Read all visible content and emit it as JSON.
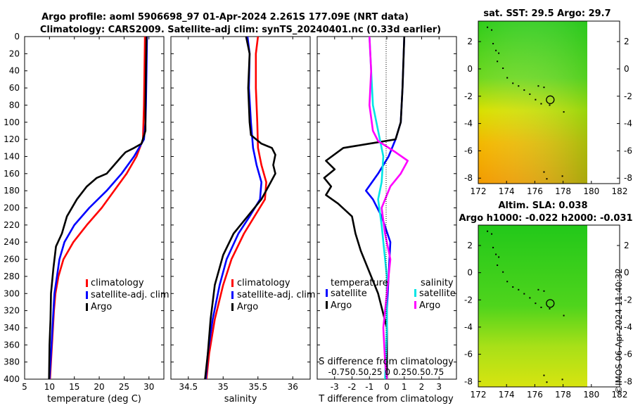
{
  "titles": {
    "line1": "Argo profile: aoml 5906698_97 01-Apr-2024 2.261S 177.09E (NRT data)",
    "line2": "Climatology: CARS2009. Satellite-adj clim: synTS_20240401.nc (0.33d earlier)"
  },
  "colors": {
    "climatology": "#ff0000",
    "satellite": "#0000ff",
    "argo": "#000000",
    "sat_salinity": "#00e5e5",
    "argo_salinity": "#ff00ff"
  },
  "depth_axis": {
    "ticks": [
      0,
      20,
      40,
      60,
      80,
      100,
      120,
      140,
      160,
      180,
      200,
      220,
      240,
      260,
      280,
      300,
      320,
      340,
      360,
      380,
      400
    ],
    "lim": [
      0,
      400
    ]
  },
  "legend": {
    "climatology": "climatology",
    "satellite_adj": "satellite-adj. clim",
    "argo": "Argo",
    "temperature": "temperature",
    "salinity": "salinity",
    "satellite": "satellite"
  },
  "chart_data": [
    {
      "type": "line",
      "name": "temperature-profile",
      "xlabel": "temperature (deg C)",
      "xlim": [
        5,
        33
      ],
      "xticks": [
        5,
        10,
        15,
        20,
        25,
        30
      ],
      "ylim": [
        400,
        0
      ],
      "series": [
        {
          "name": "climatology",
          "color": "red",
          "points": [
            [
              29.2,
              0
            ],
            [
              29.1,
              40
            ],
            [
              29.0,
              80
            ],
            [
              28.9,
              100
            ],
            [
              28.8,
              120
            ],
            [
              27.5,
              140
            ],
            [
              25.5,
              160
            ],
            [
              23.0,
              180
            ],
            [
              20.5,
              200
            ],
            [
              17.5,
              220
            ],
            [
              14.8,
              240
            ],
            [
              12.8,
              260
            ],
            [
              11.8,
              280
            ],
            [
              11.2,
              300
            ],
            [
              10.9,
              320
            ],
            [
              10.7,
              340
            ],
            [
              10.5,
              360
            ],
            [
              10.3,
              380
            ],
            [
              10.1,
              400
            ]
          ]
        },
        {
          "name": "satellite-adj. clim",
          "color": "blue",
          "points": [
            [
              29.6,
              0
            ],
            [
              29.5,
              40
            ],
            [
              29.4,
              80
            ],
            [
              29.3,
              100
            ],
            [
              29.0,
              120
            ],
            [
              27.0,
              140
            ],
            [
              24.5,
              160
            ],
            [
              21.5,
              180
            ],
            [
              18.0,
              200
            ],
            [
              15.0,
              220
            ],
            [
              13.0,
              240
            ],
            [
              12.0,
              260
            ],
            [
              11.5,
              280
            ],
            [
              11.0,
              300
            ],
            [
              10.8,
              320
            ],
            [
              10.6,
              340
            ],
            [
              10.4,
              360
            ],
            [
              10.2,
              380
            ],
            [
              10.0,
              400
            ]
          ]
        },
        {
          "name": "Argo",
          "color": "black",
          "points": [
            [
              29.5,
              0
            ],
            [
              29.4,
              40
            ],
            [
              29.3,
              80
            ],
            [
              29.3,
              110
            ],
            [
              28.5,
              125
            ],
            [
              27.0,
              130
            ],
            [
              25.3,
              135
            ],
            [
              24.5,
              140
            ],
            [
              23.0,
              150
            ],
            [
              21.5,
              160
            ],
            [
              19.5,
              165
            ],
            [
              17.5,
              175
            ],
            [
              15.5,
              190
            ],
            [
              13.5,
              210
            ],
            [
              12.5,
              230
            ],
            [
              11.3,
              245
            ],
            [
              10.8,
              270
            ],
            [
              10.3,
              300
            ],
            [
              10.2,
              330
            ],
            [
              10.0,
              360
            ],
            [
              9.9,
              400
            ]
          ]
        }
      ]
    },
    {
      "type": "line",
      "name": "salinity-profile",
      "xlabel": "salinity",
      "xlim": [
        34.25,
        36.25
      ],
      "xticks": [
        34.5,
        35,
        35.5,
        36
      ],
      "ylim": [
        400,
        0
      ],
      "series": [
        {
          "name": "climatology",
          "color": "red",
          "points": [
            [
              35.5,
              0
            ],
            [
              35.47,
              20
            ],
            [
              35.47,
              60
            ],
            [
              35.49,
              100
            ],
            [
              35.5,
              130
            ],
            [
              35.55,
              150
            ],
            [
              35.62,
              170
            ],
            [
              35.6,
              190
            ],
            [
              35.45,
              210
            ],
            [
              35.3,
              230
            ],
            [
              35.12,
              260
            ],
            [
              35.0,
              290
            ],
            [
              34.88,
              330
            ],
            [
              34.8,
              370
            ],
            [
              34.76,
              400
            ]
          ]
        },
        {
          "name": "satellite-adj. clim",
          "color": "blue",
          "points": [
            [
              35.35,
              0
            ],
            [
              35.38,
              20
            ],
            [
              35.37,
              60
            ],
            [
              35.4,
              100
            ],
            [
              35.43,
              130
            ],
            [
              35.48,
              150
            ],
            [
              35.55,
              170
            ],
            [
              35.53,
              190
            ],
            [
              35.38,
              210
            ],
            [
              35.22,
              230
            ],
            [
              35.05,
              260
            ],
            [
              34.95,
              290
            ],
            [
              34.85,
              330
            ],
            [
              34.78,
              370
            ],
            [
              34.75,
              400
            ]
          ]
        },
        {
          "name": "Argo",
          "color": "black",
          "points": [
            [
              35.33,
              0
            ],
            [
              35.38,
              20
            ],
            [
              35.36,
              60
            ],
            [
              35.38,
              100
            ],
            [
              35.4,
              115
            ],
            [
              35.55,
              125
            ],
            [
              35.7,
              130
            ],
            [
              35.75,
              138
            ],
            [
              35.72,
              150
            ],
            [
              35.75,
              160
            ],
            [
              35.65,
              175
            ],
            [
              35.55,
              190
            ],
            [
              35.35,
              210
            ],
            [
              35.15,
              230
            ],
            [
              35.0,
              255
            ],
            [
              34.88,
              290
            ],
            [
              34.82,
              330
            ],
            [
              34.78,
              370
            ],
            [
              34.74,
              400
            ]
          ]
        }
      ]
    },
    {
      "type": "line",
      "name": "difference-from-climatology",
      "xlabel": "T difference from climatology",
      "xlabel_top": "S difference from climatology",
      "xlim": [
        -4,
        4
      ],
      "xticks": [
        -3,
        -2,
        -1,
        0,
        1,
        2,
        3
      ],
      "top_ticks_text": "-0.750.50.25  0  0.250.50.75",
      "ylim": [
        400,
        0
      ],
      "series": [
        {
          "name": "satellite temperature",
          "color": "blue",
          "points": [
            [
              1.0,
              0
            ],
            [
              0.9,
              60
            ],
            [
              0.8,
              100
            ],
            [
              0.5,
              120
            ],
            [
              0.1,
              140
            ],
            [
              -0.5,
              160
            ],
            [
              -1.2,
              180
            ],
            [
              -0.8,
              190
            ],
            [
              -0.3,
              210
            ],
            [
              0.2,
              240
            ],
            [
              0.1,
              280
            ],
            [
              0.0,
              320
            ],
            [
              0.0,
              360
            ],
            [
              0.0,
              400
            ]
          ]
        },
        {
          "name": "Argo temperature",
          "color": "black",
          "points": [
            [
              1.0,
              0
            ],
            [
              0.9,
              60
            ],
            [
              0.8,
              100
            ],
            [
              0.5,
              120
            ],
            [
              -1.0,
              125
            ],
            [
              -2.5,
              130
            ],
            [
              -3.5,
              145
            ],
            [
              -3.0,
              155
            ],
            [
              -3.6,
              165
            ],
            [
              -3.2,
              175
            ],
            [
              -3.5,
              185
            ],
            [
              -2.8,
              195
            ],
            [
              -2.0,
              210
            ],
            [
              -1.8,
              230
            ],
            [
              -1.5,
              250
            ],
            [
              -0.5,
              300
            ],
            [
              0.0,
              340
            ],
            [
              0.0,
              380
            ],
            [
              0.0,
              400
            ]
          ]
        },
        {
          "name": "satellite salinity",
          "color": "cyan",
          "points": [
            [
              -1.0,
              0
            ],
            [
              -0.9,
              40
            ],
            [
              -0.8,
              80
            ],
            [
              -0.5,
              110
            ],
            [
              -0.2,
              140
            ],
            [
              -0.3,
              170
            ],
            [
              -0.5,
              190
            ],
            [
              -0.3,
              220
            ],
            [
              0.0,
              280
            ],
            [
              0.0,
              340
            ],
            [
              -0.1,
              400
            ]
          ]
        },
        {
          "name": "Argo salinity",
          "color": "magenta",
          "points": [
            [
              -1.0,
              0
            ],
            [
              -0.9,
              40
            ],
            [
              -1.0,
              80
            ],
            [
              -0.8,
              110
            ],
            [
              -0.5,
              122
            ],
            [
              0.5,
              135
            ],
            [
              1.2,
              145
            ],
            [
              0.8,
              160
            ],
            [
              0.2,
              175
            ],
            [
              -0.3,
              200
            ],
            [
              -0.1,
              230
            ],
            [
              0.2,
              260
            ],
            [
              0.0,
              300
            ],
            [
              -0.2,
              340
            ],
            [
              -0.1,
              380
            ],
            [
              0.0,
              400
            ]
          ]
        }
      ]
    },
    {
      "type": "heatmap",
      "name": "sat-sst-map",
      "title": "sat. SST: 29.5 Argo: 29.7",
      "xlim": [
        172,
        182
      ],
      "xticks": [
        172,
        174,
        176,
        178,
        180,
        182
      ],
      "ylim": [
        -8.4,
        3.5
      ],
      "yticks": [
        2,
        0,
        -2,
        -4,
        -6,
        -8
      ],
      "data_xmax": 180,
      "argo_position": [
        177.09,
        -2.261
      ]
    },
    {
      "type": "heatmap",
      "name": "altim-sla-map",
      "title_line1": "Altim. SLA: 0.038",
      "title_line2": "Argo h1000: -0.022 h2000: -0.031",
      "xlim": [
        172,
        182
      ],
      "xticks": [
        172,
        174,
        176,
        178,
        180,
        182
      ],
      "ylim": [
        -8.4,
        3.5
      ],
      "yticks": [
        2,
        0,
        -2,
        -4,
        -6,
        -8
      ],
      "data_xmax": 180,
      "argo_position": [
        177.09,
        -2.261
      ]
    }
  ],
  "timestamp": "©IMOS 06-Apr-2024 11:40:32"
}
